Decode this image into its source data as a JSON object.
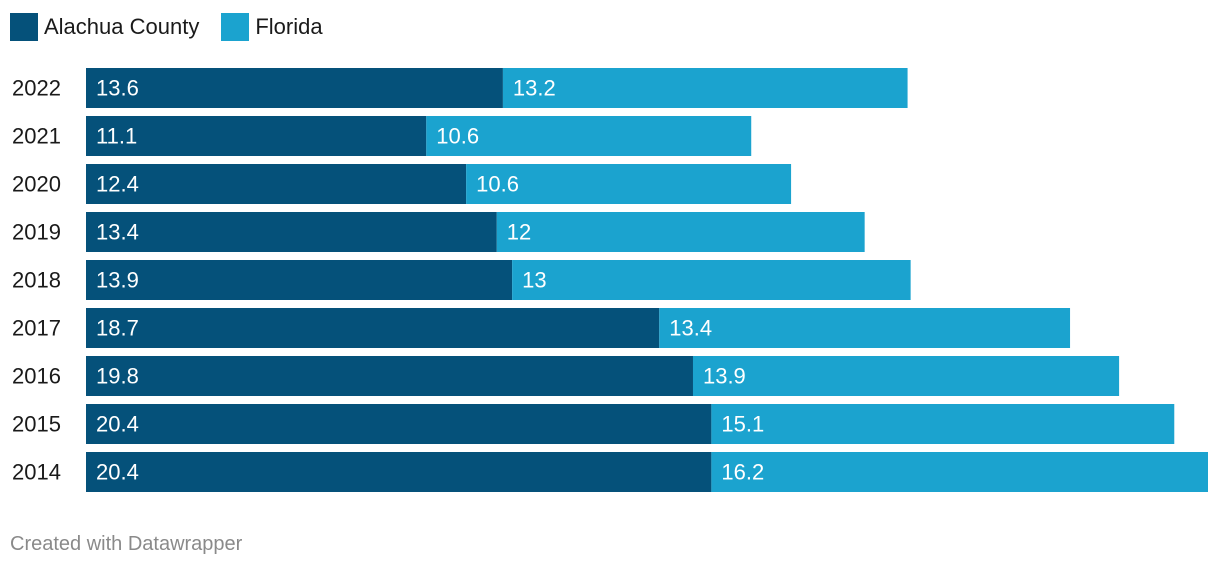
{
  "legend": {
    "series_a_label": "Alachua County",
    "series_b_label": "Florida"
  },
  "colors": {
    "alachua": "#05517a",
    "florida": "#1ba3cf",
    "label_on_bar": "#ffffff",
    "year_label": "#1a1a1a"
  },
  "chart_data": {
    "type": "bar",
    "orientation": "horizontal",
    "stacked": true,
    "categories": [
      "2022",
      "2021",
      "2020",
      "2019",
      "2018",
      "2017",
      "2016",
      "2015",
      "2014"
    ],
    "series": [
      {
        "name": "Alachua County",
        "values": [
          13.6,
          11.1,
          12.4,
          13.4,
          13.9,
          18.7,
          19.8,
          20.4,
          20.4
        ]
      },
      {
        "name": "Florida",
        "values": [
          13.2,
          10.6,
          10.6,
          12,
          13,
          13.4,
          13.9,
          15.1,
          16.2
        ]
      }
    ],
    "title": "",
    "xlabel": "",
    "ylabel": "",
    "xlim": [
      0,
      36.6
    ],
    "legend_position": "top-left",
    "grid": false
  },
  "footer": {
    "credit": "Created with Datawrapper"
  }
}
